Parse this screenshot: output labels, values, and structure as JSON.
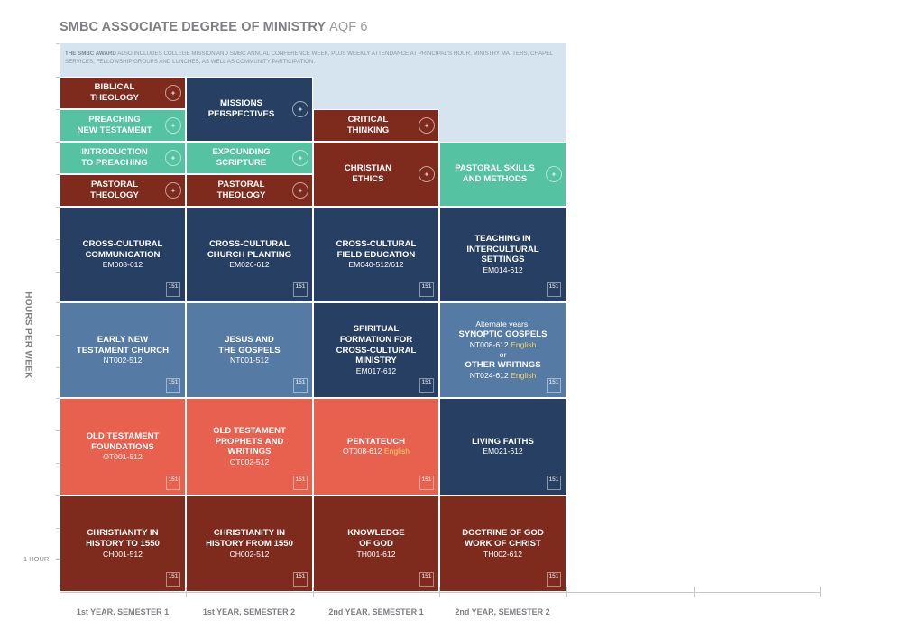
{
  "title": {
    "main": "SMBC ASSOCIATE DEGREE OF MINISTRY",
    "suffix": "AQF 6"
  },
  "award_note": {
    "bold": "THE SMBC AWARD",
    "text": " ALSO INCLUDES COLLEGE MISSION AND SMBC ANNUAL CONFERENCE WEEK, PLUS WEEKLY ATTENDANCE AT PRINCIPAL'S HOUR, MINISTRY MATTERS, CHAPEL SERVICES, FELLOWSHIP GROUPS AND LUNCHES, AS WELL AS COMMUNITY PARTICIPATION."
  },
  "axis": {
    "y_label": "HOURS PER WEEK",
    "unit_label": "1 HOUR",
    "columns": [
      "1st YEAR, SEMESTER 1",
      "1st YEAR, SEMESTER 2",
      "2nd YEAR, SEMESTER 1",
      "2nd YEAR, SEMESTER 2"
    ]
  },
  "colors": {
    "theology_red": "#7e2a1d",
    "ministry_teal": "#55c3a2",
    "mission_navy": "#263f63",
    "new_testament_slate": "#557aa3",
    "old_testament_coral": "#e8604e",
    "award_background": "#d5e4ee"
  },
  "badge_round_icon": "college-seal-icon",
  "badge_square_text": "151",
  "units": [
    {
      "id": "biblical-theology",
      "name": "BIBLICAL\nTHEOLOGY",
      "color": "theology_red",
      "badge": "round"
    },
    {
      "id": "preaching-new-testament",
      "name": "PREACHING\nNEW TESTAMENT",
      "color": "ministry_teal",
      "badge": "round"
    },
    {
      "id": "introduction-to-preaching",
      "name": "INTRODUCTION\nTO PREACHING",
      "color": "ministry_teal",
      "badge": "round"
    },
    {
      "id": "pastoral-theology-1",
      "name": "PASTORAL\nTHEOLOGY",
      "color": "theology_red",
      "badge": "round"
    },
    {
      "id": "missions-perspectives",
      "name": "MISSIONS\nPERSPECTIVES",
      "color": "mission_navy",
      "badge": "round"
    },
    {
      "id": "expounding-scripture",
      "name": "EXPOUNDING\nSCRIPTURE",
      "color": "ministry_teal",
      "badge": "round"
    },
    {
      "id": "pastoral-theology-2",
      "name": "PASTORAL\nTHEOLOGY",
      "color": "theology_red",
      "badge": "round"
    },
    {
      "id": "critical-thinking",
      "name": "CRITICAL\nTHINKING",
      "color": "theology_red",
      "badge": "round"
    },
    {
      "id": "christian-ethics",
      "name": "CHRISTIAN\nETHICS",
      "color": "theology_red",
      "badge": "round"
    },
    {
      "id": "pastoral-skills",
      "name": "PASTORAL SKILLS\nAND METHODS",
      "color": "ministry_teal",
      "badge": "round"
    },
    {
      "id": "cc-communication",
      "name": "CROSS-CULTURAL\nCOMMUNICATION",
      "code": "EM008-612",
      "color": "mission_navy",
      "badge": "square"
    },
    {
      "id": "cc-church-planting",
      "name": "CROSS-CULTURAL\nCHURCH PLANTING",
      "code": "EM026-612",
      "color": "mission_navy",
      "badge": "square"
    },
    {
      "id": "cc-field-education",
      "name": "CROSS-CULTURAL\nFIELD EDUCATION",
      "code": "EM040-512/612",
      "color": "mission_navy",
      "badge": "square"
    },
    {
      "id": "teaching-intercultural",
      "name": "TEACHING IN\nINTERCULTURAL\nSETTINGS",
      "code": "EM014-612",
      "color": "mission_navy",
      "badge": "square"
    },
    {
      "id": "early-nt-church",
      "name": "EARLY NEW\nTESTAMENT CHURCH",
      "code": "NT002-512",
      "color": "new_testament_slate",
      "badge": "square"
    },
    {
      "id": "jesus-gospels",
      "name": "JESUS AND\nTHE GOSPELS",
      "code": "NT001-512",
      "color": "new_testament_slate",
      "badge": "square"
    },
    {
      "id": "spiritual-formation",
      "name": "SPIRITUAL\nFORMATION FOR\nCROSS-CULTURAL\nMINISTRY",
      "code": "EM017-612",
      "color": "mission_navy",
      "badge": "square"
    },
    {
      "id": "alternate-years",
      "color": "new_testament_slate",
      "badge": "square",
      "alt": {
        "intro": "Alternate years:",
        "name1": "SYNOPTIC GOSPELS",
        "code1": "NT008-612",
        "lang1": "English",
        "or": "or",
        "name2": "OTHER WRITINGS",
        "code2": "NT024-612",
        "lang2": "English"
      }
    },
    {
      "id": "ot-foundations",
      "name": "OLD TESTAMENT\nFOUNDATIONS",
      "code": "OT001-512",
      "color": "old_testament_coral",
      "badge": "square"
    },
    {
      "id": "ot-prophets-writings",
      "name": "OLD TESTAMENT\nPROPHETS AND\nWRITINGS",
      "code": "OT002-512",
      "color": "old_testament_coral",
      "badge": "square"
    },
    {
      "id": "pentateuch",
      "name": "PENTATEUCH",
      "code": "OT008-612",
      "lang": "English",
      "color": "old_testament_coral",
      "badge": "square"
    },
    {
      "id": "living-faiths",
      "name": "LIVING FAITHS",
      "code": "EM021-612",
      "color": "mission_navy",
      "badge": "square"
    },
    {
      "id": "christianity-to-1550",
      "name": "CHRISTIANITY IN\nHISTORY TO 1550",
      "code": "CH001-512",
      "color": "theology_red",
      "badge": "square"
    },
    {
      "id": "christianity-from-1550",
      "name": "CHRISTIANITY IN\nHISTORY FROM 1550",
      "code": "CH002-512",
      "color": "theology_red",
      "badge": "square"
    },
    {
      "id": "knowledge-of-god",
      "name": "KNOWLEDGE\nOF GOD",
      "code": "TH001-612",
      "color": "theology_red",
      "badge": "square"
    },
    {
      "id": "doctrine-of-god",
      "name": "DOCTRINE OF GOD\nWORK OF CHRIST",
      "code": "TH002-612",
      "color": "theology_red",
      "badge": "square"
    }
  ]
}
